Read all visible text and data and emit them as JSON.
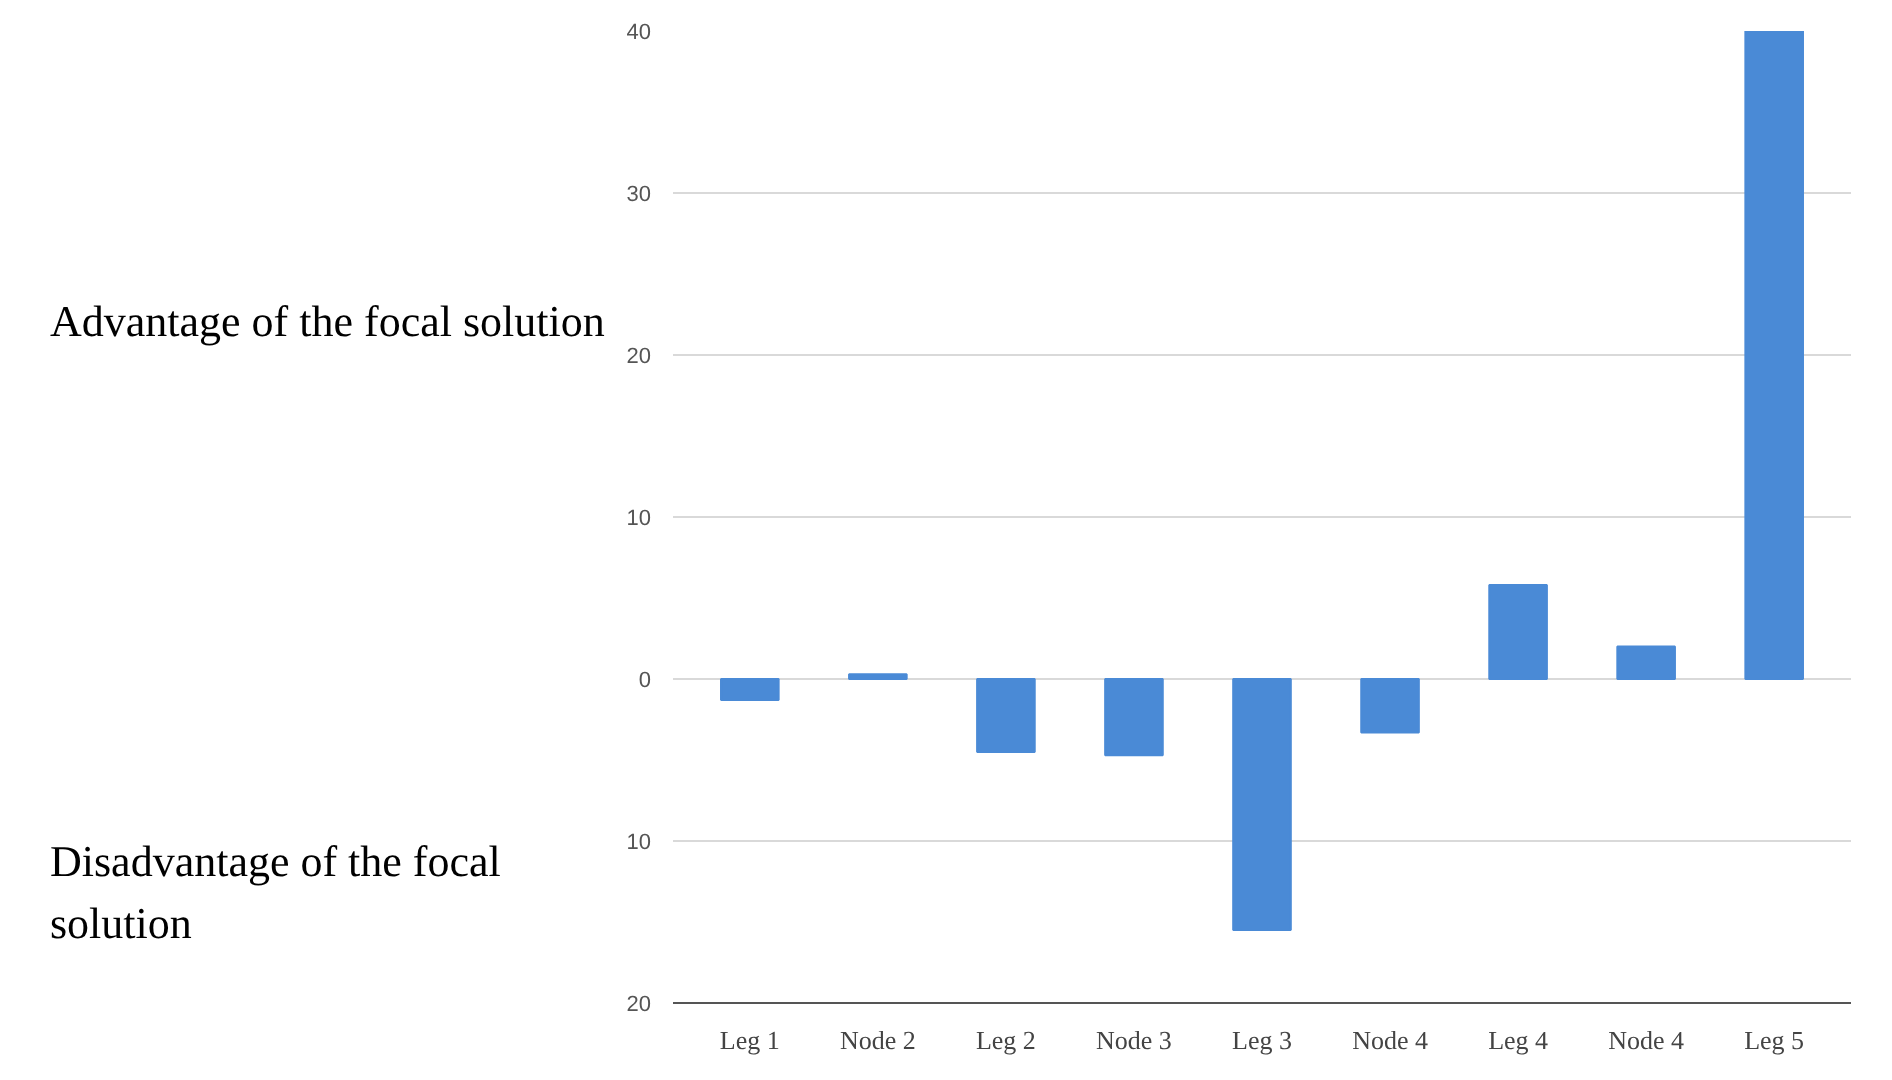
{
  "chart_data": {
    "type": "bar",
    "categories": [
      "Leg 1",
      "Node 2",
      "Leg 2",
      "Node 3",
      "Leg 3",
      "Node 4",
      "Leg 4",
      "Node 4",
      "Leg 5"
    ],
    "values": [
      -1.3,
      0.3,
      -4.5,
      -4.7,
      -15.5,
      -3.3,
      5.8,
      2,
      40
    ],
    "color": "#4a8ad6",
    "ylim": [
      -20,
      40
    ],
    "yticks": [
      {
        "value": -20,
        "label": "20"
      },
      {
        "value": -10,
        "label": "10"
      },
      0,
      10,
      20,
      30,
      40
    ],
    "grid": "y",
    "annotations": [
      "Advantage of the focal solution",
      "Disadvantage of the focal solution"
    ]
  }
}
